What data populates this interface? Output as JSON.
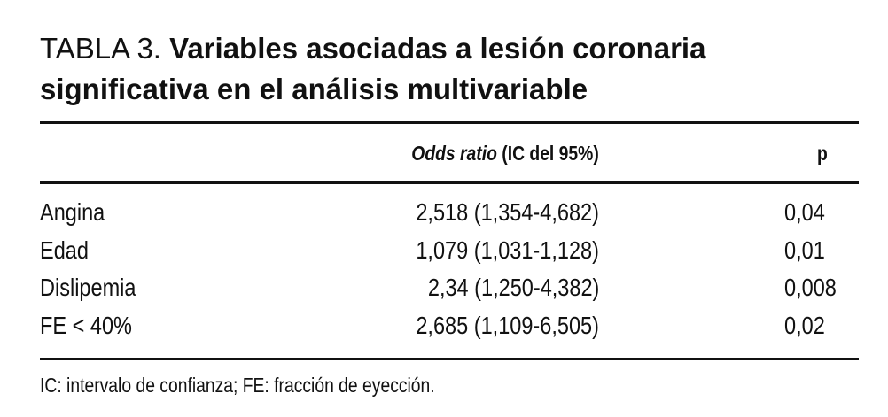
{
  "table_title": {
    "label": "TABLA 3.",
    "lines": [
      "Variables asociadas a lesión coronaria",
      "significativa en el análisis multivariable"
    ]
  },
  "header": {
    "odds_italic": "Odds ratio",
    "odds_rest": "(IC del 95%)",
    "p": "p"
  },
  "rows": [
    [
      "Angina",
      "2,518 (1,354-4,682)",
      "0,04"
    ],
    [
      "Edad",
      "1,079 (1,031-1,128)",
      "0,01"
    ],
    [
      "Dislipemia",
      "2,34 (1,250-4,382)",
      "0,008"
    ],
    [
      "FE < 40%",
      "2,685 (1,109-6,505)",
      "0,02"
    ]
  ],
  "footnote": "IC: intervalo de confianza; FE: fracción de eyección."
}
